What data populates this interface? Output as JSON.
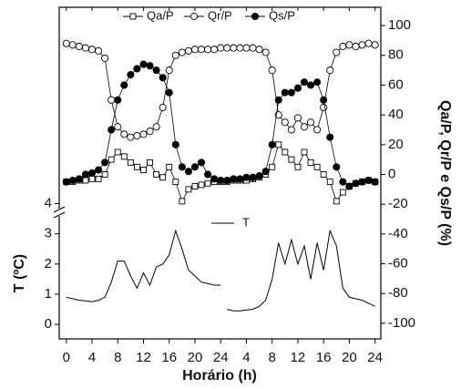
{
  "chart_data": {
    "type": "line",
    "x_label": "Horário (h)",
    "y_label": "T (ºC)",
    "y2_label": "Qa/P, Qr/P e Qs/P (%)",
    "xlim": [
      -1.1,
      48.9
    ],
    "xticks": [
      0,
      4,
      8,
      12,
      16,
      20,
      24,
      {
        "value": 28,
        "label": "4"
      },
      {
        "value": 32,
        "label": "8"
      },
      {
        "value": 36,
        "label": "12"
      },
      {
        "value": 40,
        "label": "16"
      },
      {
        "value": 44,
        "label": "20"
      },
      {
        "value": 48,
        "label": "24"
      }
    ],
    "ylim": [
      -0.48,
      10.5
    ],
    "yticks": [
      0,
      1,
      2,
      3,
      4
    ],
    "y2lim": [
      -110.5,
      112.3
    ],
    "y2ticks": [
      -100,
      -80,
      -60,
      -40,
      -20,
      0,
      20,
      40,
      60,
      80,
      100
    ],
    "x": [
      0,
      1,
      2,
      3,
      4,
      5,
      6,
      7,
      8,
      9,
      10,
      11,
      12,
      13,
      14,
      15,
      16,
      17,
      18,
      19,
      20,
      21,
      22,
      23,
      24,
      25,
      26,
      27,
      28,
      29,
      30,
      31,
      32,
      33,
      34,
      35,
      36,
      37,
      38,
      39,
      40,
      41,
      42,
      43,
      44,
      45,
      46,
      47,
      48
    ],
    "series": [
      {
        "name": "Qa/P",
        "color": "#000000",
        "marker": "square",
        "filled": false,
        "axis": "y2",
        "values": [
          -5,
          -5,
          -4,
          -4,
          -3,
          -3,
          0,
          10,
          15,
          12,
          8,
          5,
          3,
          8,
          0,
          -2,
          5,
          -5,
          -18,
          -10,
          -8,
          -7,
          -6,
          -5,
          -5,
          -5,
          -4,
          -4,
          -4,
          -3,
          -2,
          0,
          5,
          20,
          15,
          10,
          5,
          15,
          8,
          5,
          0,
          -5,
          -18,
          -12,
          -8,
          -6,
          -5,
          -4,
          -5
        ]
      },
      {
        "name": "Qr/P",
        "color": "#000000",
        "marker": "circle",
        "filled": false,
        "axis": "y2",
        "values": [
          88,
          87,
          86,
          85,
          84,
          83,
          78,
          50,
          32,
          27,
          25,
          26,
          27,
          29,
          32,
          45,
          70,
          80,
          82,
          83,
          84,
          84,
          84,
          84,
          85,
          85,
          85,
          85,
          85,
          85,
          84,
          82,
          70,
          40,
          35,
          30,
          38,
          32,
          35,
          30,
          45,
          70,
          82,
          86,
          87,
          86,
          87,
          88,
          87
        ]
      },
      {
        "name": "Qs/P",
        "color": "#000000",
        "marker": "circle",
        "filled": true,
        "axis": "y2",
        "values": [
          -5,
          -4,
          -3,
          0,
          1,
          3,
          8,
          30,
          50,
          60,
          67,
          71,
          74,
          73,
          70,
          65,
          55,
          20,
          5,
          2,
          5,
          8,
          0,
          -3,
          -4,
          -4,
          -3,
          -3,
          -2,
          -2,
          -1,
          2,
          20,
          50,
          55,
          55,
          58,
          62,
          60,
          62,
          50,
          25,
          5,
          -5,
          -8,
          -6,
          -5,
          -4,
          -5
        ]
      },
      {
        "name": "T",
        "color": "#000000",
        "marker": "none",
        "filled": false,
        "x": [
          0,
          1,
          2,
          3,
          4,
          5,
          6,
          7,
          8,
          9,
          10,
          11,
          12,
          13,
          14,
          15,
          16,
          17,
          18,
          19,
          20,
          21,
          22,
          23,
          24,
          24.5,
          25,
          26,
          27,
          28,
          29,
          30,
          31,
          32,
          33,
          34,
          35,
          36,
          37,
          38,
          39,
          40,
          41,
          42,
          43,
          44,
          45,
          46,
          47,
          48
        ],
        "values": [
          0.9,
          0.85,
          0.8,
          0.78,
          0.75,
          0.8,
          0.9,
          1.4,
          2.1,
          2.1,
          1.6,
          1.2,
          1.7,
          1.3,
          1.9,
          2.0,
          2.3,
          3.1,
          2.5,
          1.8,
          1.6,
          1.4,
          1.35,
          1.3,
          1.3,
          null,
          0.5,
          0.45,
          0.45,
          0.48,
          0.5,
          0.6,
          0.8,
          1.5,
          2.7,
          2.0,
          2.8,
          2.0,
          2.6,
          1.5,
          2.7,
          1.8,
          3.1,
          2.6,
          1.2,
          0.9,
          0.85,
          0.8,
          0.7,
          0.6
        ]
      }
    ]
  }
}
